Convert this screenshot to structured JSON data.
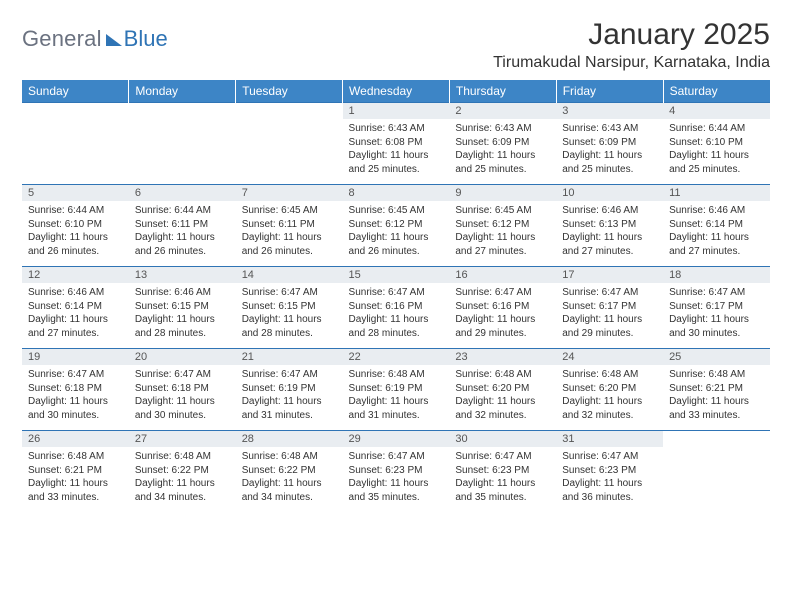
{
  "logo": {
    "word1": "General",
    "word2": "Blue"
  },
  "title": "January 2025",
  "location": "Tirumakudal Narsipur, Karnataka, India",
  "theme": {
    "header_bg": "#3d85c6",
    "header_text": "#ffffff",
    "daynum_bg": "#e9edf1",
    "rule_color": "#2f74b5",
    "body_text": "#333333",
    "logo_gray": "#6b7280",
    "logo_blue": "#2f74b5"
  },
  "weekdays": [
    "Sunday",
    "Monday",
    "Tuesday",
    "Wednesday",
    "Thursday",
    "Friday",
    "Saturday"
  ],
  "weeks": [
    [
      null,
      null,
      null,
      {
        "d": "1",
        "sr": "Sunrise: 6:43 AM",
        "ss": "Sunset: 6:08 PM",
        "dl1": "Daylight: 11 hours",
        "dl2": "and 25 minutes."
      },
      {
        "d": "2",
        "sr": "Sunrise: 6:43 AM",
        "ss": "Sunset: 6:09 PM",
        "dl1": "Daylight: 11 hours",
        "dl2": "and 25 minutes."
      },
      {
        "d": "3",
        "sr": "Sunrise: 6:43 AM",
        "ss": "Sunset: 6:09 PM",
        "dl1": "Daylight: 11 hours",
        "dl2": "and 25 minutes."
      },
      {
        "d": "4",
        "sr": "Sunrise: 6:44 AM",
        "ss": "Sunset: 6:10 PM",
        "dl1": "Daylight: 11 hours",
        "dl2": "and 25 minutes."
      }
    ],
    [
      {
        "d": "5",
        "sr": "Sunrise: 6:44 AM",
        "ss": "Sunset: 6:10 PM",
        "dl1": "Daylight: 11 hours",
        "dl2": "and 26 minutes."
      },
      {
        "d": "6",
        "sr": "Sunrise: 6:44 AM",
        "ss": "Sunset: 6:11 PM",
        "dl1": "Daylight: 11 hours",
        "dl2": "and 26 minutes."
      },
      {
        "d": "7",
        "sr": "Sunrise: 6:45 AM",
        "ss": "Sunset: 6:11 PM",
        "dl1": "Daylight: 11 hours",
        "dl2": "and 26 minutes."
      },
      {
        "d": "8",
        "sr": "Sunrise: 6:45 AM",
        "ss": "Sunset: 6:12 PM",
        "dl1": "Daylight: 11 hours",
        "dl2": "and 26 minutes."
      },
      {
        "d": "9",
        "sr": "Sunrise: 6:45 AM",
        "ss": "Sunset: 6:12 PM",
        "dl1": "Daylight: 11 hours",
        "dl2": "and 27 minutes."
      },
      {
        "d": "10",
        "sr": "Sunrise: 6:46 AM",
        "ss": "Sunset: 6:13 PM",
        "dl1": "Daylight: 11 hours",
        "dl2": "and 27 minutes."
      },
      {
        "d": "11",
        "sr": "Sunrise: 6:46 AM",
        "ss": "Sunset: 6:14 PM",
        "dl1": "Daylight: 11 hours",
        "dl2": "and 27 minutes."
      }
    ],
    [
      {
        "d": "12",
        "sr": "Sunrise: 6:46 AM",
        "ss": "Sunset: 6:14 PM",
        "dl1": "Daylight: 11 hours",
        "dl2": "and 27 minutes."
      },
      {
        "d": "13",
        "sr": "Sunrise: 6:46 AM",
        "ss": "Sunset: 6:15 PM",
        "dl1": "Daylight: 11 hours",
        "dl2": "and 28 minutes."
      },
      {
        "d": "14",
        "sr": "Sunrise: 6:47 AM",
        "ss": "Sunset: 6:15 PM",
        "dl1": "Daylight: 11 hours",
        "dl2": "and 28 minutes."
      },
      {
        "d": "15",
        "sr": "Sunrise: 6:47 AM",
        "ss": "Sunset: 6:16 PM",
        "dl1": "Daylight: 11 hours",
        "dl2": "and 28 minutes."
      },
      {
        "d": "16",
        "sr": "Sunrise: 6:47 AM",
        "ss": "Sunset: 6:16 PM",
        "dl1": "Daylight: 11 hours",
        "dl2": "and 29 minutes."
      },
      {
        "d": "17",
        "sr": "Sunrise: 6:47 AM",
        "ss": "Sunset: 6:17 PM",
        "dl1": "Daylight: 11 hours",
        "dl2": "and 29 minutes."
      },
      {
        "d": "18",
        "sr": "Sunrise: 6:47 AM",
        "ss": "Sunset: 6:17 PM",
        "dl1": "Daylight: 11 hours",
        "dl2": "and 30 minutes."
      }
    ],
    [
      {
        "d": "19",
        "sr": "Sunrise: 6:47 AM",
        "ss": "Sunset: 6:18 PM",
        "dl1": "Daylight: 11 hours",
        "dl2": "and 30 minutes."
      },
      {
        "d": "20",
        "sr": "Sunrise: 6:47 AM",
        "ss": "Sunset: 6:18 PM",
        "dl1": "Daylight: 11 hours",
        "dl2": "and 30 minutes."
      },
      {
        "d": "21",
        "sr": "Sunrise: 6:47 AM",
        "ss": "Sunset: 6:19 PM",
        "dl1": "Daylight: 11 hours",
        "dl2": "and 31 minutes."
      },
      {
        "d": "22",
        "sr": "Sunrise: 6:48 AM",
        "ss": "Sunset: 6:19 PM",
        "dl1": "Daylight: 11 hours",
        "dl2": "and 31 minutes."
      },
      {
        "d": "23",
        "sr": "Sunrise: 6:48 AM",
        "ss": "Sunset: 6:20 PM",
        "dl1": "Daylight: 11 hours",
        "dl2": "and 32 minutes."
      },
      {
        "d": "24",
        "sr": "Sunrise: 6:48 AM",
        "ss": "Sunset: 6:20 PM",
        "dl1": "Daylight: 11 hours",
        "dl2": "and 32 minutes."
      },
      {
        "d": "25",
        "sr": "Sunrise: 6:48 AM",
        "ss": "Sunset: 6:21 PM",
        "dl1": "Daylight: 11 hours",
        "dl2": "and 33 minutes."
      }
    ],
    [
      {
        "d": "26",
        "sr": "Sunrise: 6:48 AM",
        "ss": "Sunset: 6:21 PM",
        "dl1": "Daylight: 11 hours",
        "dl2": "and 33 minutes."
      },
      {
        "d": "27",
        "sr": "Sunrise: 6:48 AM",
        "ss": "Sunset: 6:22 PM",
        "dl1": "Daylight: 11 hours",
        "dl2": "and 34 minutes."
      },
      {
        "d": "28",
        "sr": "Sunrise: 6:48 AM",
        "ss": "Sunset: 6:22 PM",
        "dl1": "Daylight: 11 hours",
        "dl2": "and 34 minutes."
      },
      {
        "d": "29",
        "sr": "Sunrise: 6:47 AM",
        "ss": "Sunset: 6:23 PM",
        "dl1": "Daylight: 11 hours",
        "dl2": "and 35 minutes."
      },
      {
        "d": "30",
        "sr": "Sunrise: 6:47 AM",
        "ss": "Sunset: 6:23 PM",
        "dl1": "Daylight: 11 hours",
        "dl2": "and 35 minutes."
      },
      {
        "d": "31",
        "sr": "Sunrise: 6:47 AM",
        "ss": "Sunset: 6:23 PM",
        "dl1": "Daylight: 11 hours",
        "dl2": "and 36 minutes."
      },
      null
    ]
  ]
}
